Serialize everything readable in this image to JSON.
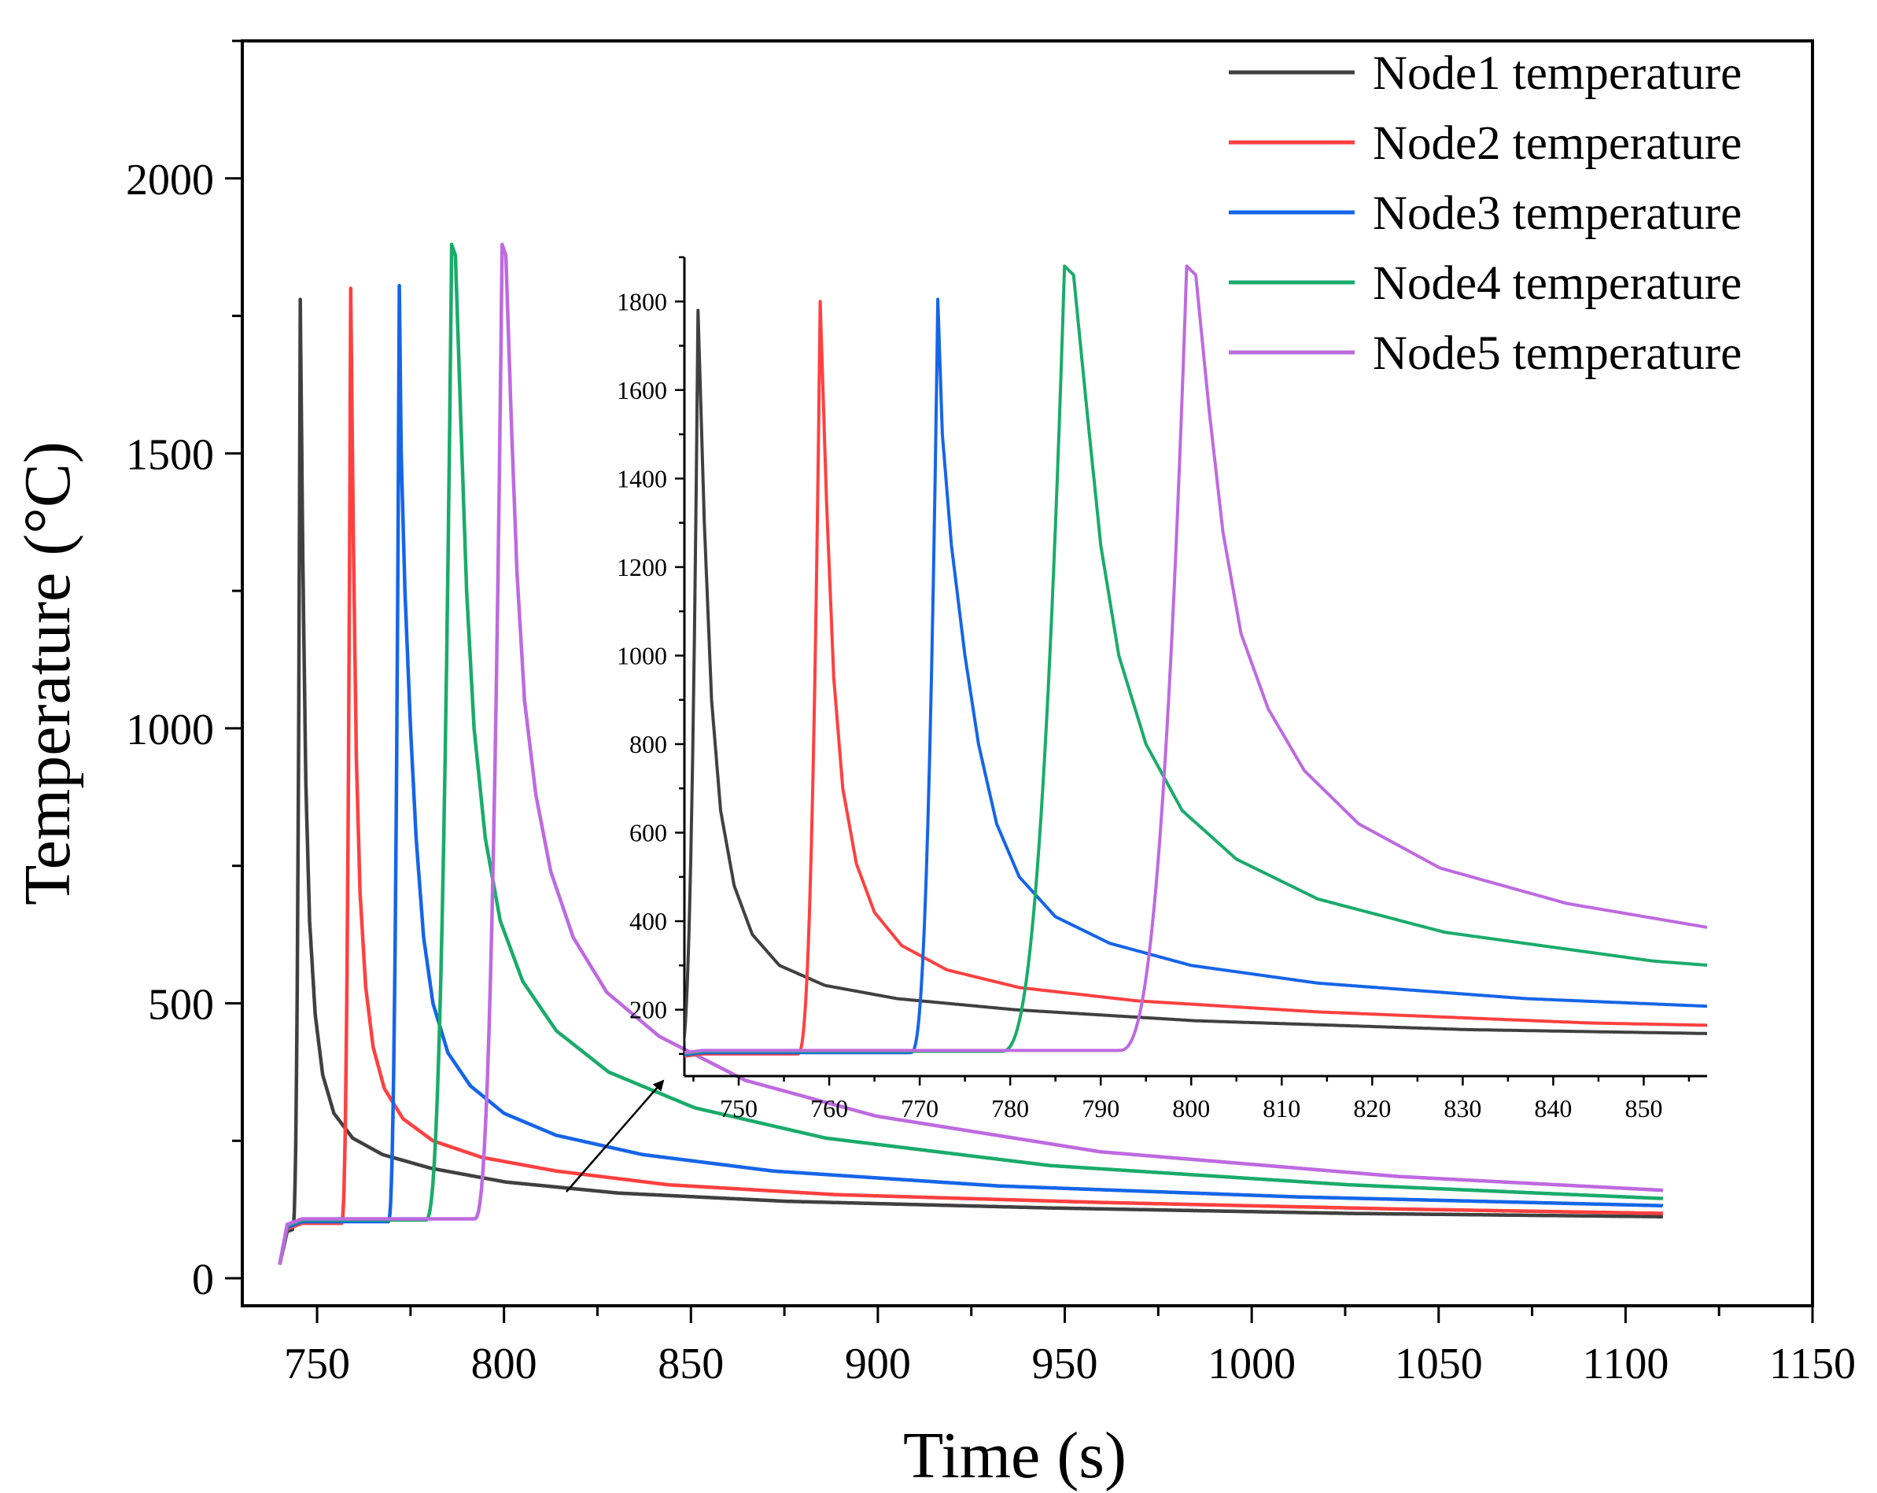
{
  "chart_data": [
    {
      "type": "line",
      "role": "main",
      "xlabel": "Time (s)",
      "ylabel": "Temperature (°C)",
      "xlim": [
        730,
        1150
      ],
      "ylim": [
        -50,
        2250
      ],
      "xticks": [
        750,
        800,
        850,
        900,
        950,
        1000,
        1050,
        1100,
        1150
      ],
      "yticks": [
        0,
        500,
        1000,
        1500,
        2000
      ],
      "legend_position": "top-right",
      "series": [
        {
          "name": "Node1 temperature",
          "color": "#404040",
          "ignition_time": 743.5,
          "peak_time": 745.5,
          "peak_value": 1780,
          "plateau_value": 95,
          "end_time": 1110,
          "decay_profile": [
            [
              0,
              1780
            ],
            [
              0.7,
              1300
            ],
            [
              1.5,
              900
            ],
            [
              2.5,
              650
            ],
            [
              4,
              480
            ],
            [
              6,
              370
            ],
            [
              9,
              300
            ],
            [
              14,
              255
            ],
            [
              22,
              225
            ],
            [
              35,
              200
            ],
            [
              55,
              175
            ],
            [
              85,
              155
            ],
            [
              130,
              140
            ],
            [
              200,
              128
            ],
            [
              280,
              118
            ],
            [
              364.5,
              112
            ]
          ]
        },
        {
          "name": "Node2 temperature",
          "color": "#ff4040",
          "ignition_time": 756.5,
          "peak_time": 759,
          "peak_value": 1800,
          "plateau_value": 100,
          "end_time": 1110,
          "decay_profile": [
            [
              0,
              1800
            ],
            [
              0.7,
              1350
            ],
            [
              1.5,
              950
            ],
            [
              2.5,
              700
            ],
            [
              4,
              530
            ],
            [
              6,
              420
            ],
            [
              9,
              345
            ],
            [
              14,
              290
            ],
            [
              22,
              250
            ],
            [
              35,
              220
            ],
            [
              55,
              195
            ],
            [
              85,
              170
            ],
            [
              130,
              152
            ],
            [
              200,
              138
            ],
            [
              280,
              126
            ],
            [
              351,
              118
            ]
          ]
        },
        {
          "name": "Node3 temperature",
          "color": "#1565e8",
          "ignition_time": 769,
          "peak_time": 772,
          "peak_value": 1805,
          "plateau_value": 103,
          "end_time": 1110,
          "decay_profile": [
            [
              0,
              1805
            ],
            [
              0.5,
              1500
            ],
            [
              1.5,
              1250
            ],
            [
              3,
              1000
            ],
            [
              4.5,
              800
            ],
            [
              6.5,
              620
            ],
            [
              9,
              500
            ],
            [
              13,
              410
            ],
            [
              19,
              350
            ],
            [
              28,
              300
            ],
            [
              42,
              260
            ],
            [
              65,
              225
            ],
            [
              100,
              195
            ],
            [
              160,
              168
            ],
            [
              240,
              148
            ],
            [
              338,
              132
            ]
          ]
        },
        {
          "name": "Node4 temperature",
          "color": "#1aab6b",
          "ignition_time": 779,
          "peak_time": 786,
          "peak_value": 1880,
          "plateau_value": 106,
          "end_time": 1110,
          "decay_profile": [
            [
              0,
              1880
            ],
            [
              1,
              1860
            ],
            [
              2.5,
              1550
            ],
            [
              4,
              1250
            ],
            [
              6,
              1000
            ],
            [
              9,
              800
            ],
            [
              13,
              650
            ],
            [
              19,
              540
            ],
            [
              28,
              450
            ],
            [
              42,
              375
            ],
            [
              65,
              310
            ],
            [
              100,
              255
            ],
            [
              160,
              205
            ],
            [
              240,
              170
            ],
            [
              324,
              145
            ]
          ]
        },
        {
          "name": "Node5 temperature",
          "color": "#be6ae0",
          "ignition_time": 792,
          "peak_time": 799.5,
          "peak_value": 1880,
          "plateau_value": 108,
          "end_time": 1110,
          "decay_profile": [
            [
              0,
              1880
            ],
            [
              1,
              1860
            ],
            [
              2.5,
              1550
            ],
            [
              4,
              1280
            ],
            [
              6,
              1050
            ],
            [
              9,
              880
            ],
            [
              13,
              740
            ],
            [
              19,
              620
            ],
            [
              28,
              520
            ],
            [
              42,
              440
            ],
            [
              65,
              360
            ],
            [
              100,
              295
            ],
            [
              160,
              230
            ],
            [
              240,
              185
            ],
            [
              310.5,
              160
            ]
          ]
        }
      ]
    },
    {
      "type": "line",
      "role": "inset",
      "xlim": [
        744,
        857
      ],
      "ylim": [
        50,
        1900
      ],
      "xticks": [
        750,
        760,
        770,
        780,
        790,
        800,
        810,
        820,
        830,
        840,
        850
      ],
      "yticks": [
        200,
        400,
        600,
        800,
        1000,
        1200,
        1400,
        1600,
        1800
      ],
      "annotation": "arrow from main curves at t≈813 s pointing to inset"
    }
  ]
}
